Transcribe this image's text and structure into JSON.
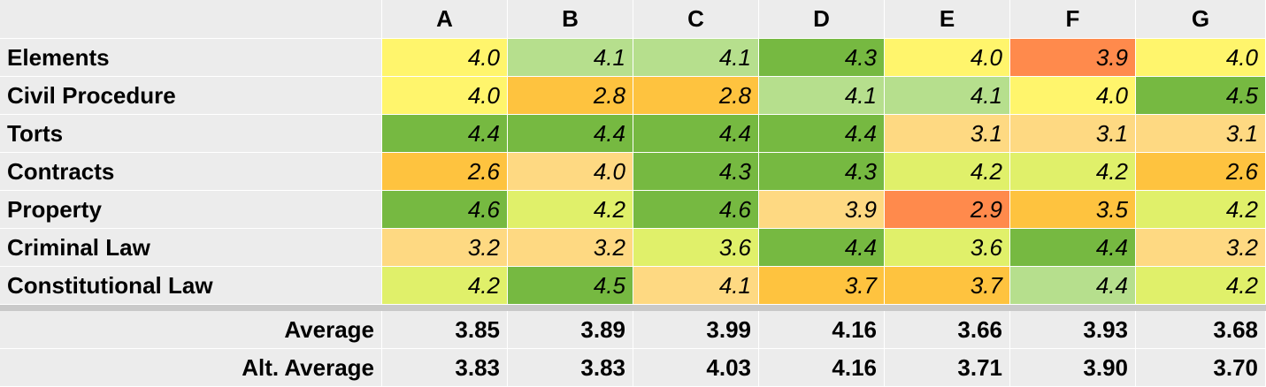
{
  "table": {
    "columns": [
      "A",
      "B",
      "C",
      "D",
      "E",
      "F",
      "G"
    ],
    "rows": [
      {
        "label": "Elements",
        "cells": [
          {
            "text": "4.0",
            "color": "#fff56c"
          },
          {
            "text": "4.1",
            "color": "#b6df8d"
          },
          {
            "text": "4.1",
            "color": "#b6df8d"
          },
          {
            "text": "4.3",
            "color": "#76b941"
          },
          {
            "text": "4.0",
            "color": "#fff56c"
          },
          {
            "text": "3.9",
            "color": "#ff8a4c"
          },
          {
            "text": "4.0",
            "color": "#fff56c"
          }
        ]
      },
      {
        "label": "Civil Procedure",
        "cells": [
          {
            "text": "4.0",
            "color": "#fff56c"
          },
          {
            "text": "2.8",
            "color": "#fec33f"
          },
          {
            "text": "2.8",
            "color": "#fec33f"
          },
          {
            "text": "4.1",
            "color": "#b6df8d"
          },
          {
            "text": "4.1",
            "color": "#b6df8d"
          },
          {
            "text": "4.0",
            "color": "#fff56c"
          },
          {
            "text": "4.5",
            "color": "#76b941"
          }
        ]
      },
      {
        "label": "Torts",
        "cells": [
          {
            "text": "4.4",
            "color": "#76b941"
          },
          {
            "text": "4.4",
            "color": "#76b941"
          },
          {
            "text": "4.4",
            "color": "#76b941"
          },
          {
            "text": "4.4",
            "color": "#76b941"
          },
          {
            "text": "3.1",
            "color": "#fed982"
          },
          {
            "text": "3.1",
            "color": "#fed982"
          },
          {
            "text": "3.1",
            "color": "#fed982"
          }
        ]
      },
      {
        "label": "Contracts",
        "cells": [
          {
            "text": "2.6",
            "color": "#fec33f"
          },
          {
            "text": "4.0",
            "color": "#fed982"
          },
          {
            "text": "4.3",
            "color": "#76b941"
          },
          {
            "text": "4.3",
            "color": "#76b941"
          },
          {
            "text": "4.2",
            "color": "#e0f06a"
          },
          {
            "text": "4.2",
            "color": "#e0f06a"
          },
          {
            "text": "2.6",
            "color": "#fec33f"
          }
        ]
      },
      {
        "label": "Property",
        "cells": [
          {
            "text": "4.6",
            "color": "#76b941"
          },
          {
            "text": "4.2",
            "color": "#e0f06a"
          },
          {
            "text": "4.6",
            "color": "#76b941"
          },
          {
            "text": "3.9",
            "color": "#fed982"
          },
          {
            "text": "2.9",
            "color": "#ff8a4c"
          },
          {
            "text": "3.5",
            "color": "#fec33f"
          },
          {
            "text": "4.2",
            "color": "#e0f06a"
          }
        ]
      },
      {
        "label": "Criminal Law",
        "cells": [
          {
            "text": "3.2",
            "color": "#fed982"
          },
          {
            "text": "3.2",
            "color": "#fed982"
          },
          {
            "text": "3.6",
            "color": "#e0f06a"
          },
          {
            "text": "4.4",
            "color": "#76b941"
          },
          {
            "text": "3.6",
            "color": "#e0f06a"
          },
          {
            "text": "4.4",
            "color": "#76b941"
          },
          {
            "text": "3.2",
            "color": "#fed982"
          }
        ]
      },
      {
        "label": "Constitutional Law",
        "cells": [
          {
            "text": "4.2",
            "color": "#e0f06a"
          },
          {
            "text": "4.5",
            "color": "#76b941"
          },
          {
            "text": "4.1",
            "color": "#fed982"
          },
          {
            "text": "3.7",
            "color": "#fec33f"
          },
          {
            "text": "3.7",
            "color": "#fec33f"
          },
          {
            "text": "4.4",
            "color": "#b6df8d"
          },
          {
            "text": "4.2",
            "color": "#e0f06a"
          }
        ]
      }
    ],
    "summary": [
      {
        "label": "Average",
        "cells": [
          "3.85",
          "3.89",
          "3.99",
          "4.16",
          "3.66",
          "3.93",
          "3.68"
        ]
      },
      {
        "label": "Alt. Average",
        "cells": [
          "3.83",
          "3.83",
          "4.03",
          "4.16",
          "3.71",
          "3.90",
          "3.70"
        ]
      }
    ]
  }
}
